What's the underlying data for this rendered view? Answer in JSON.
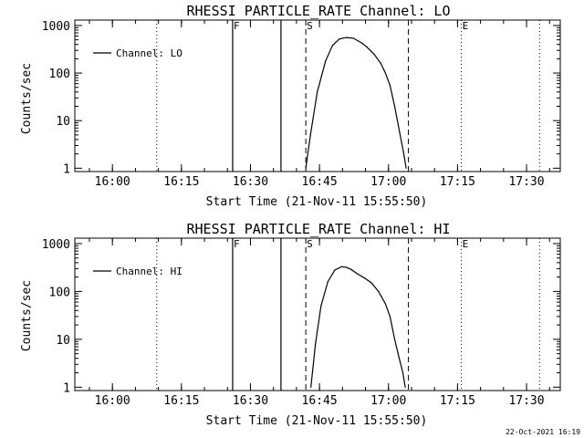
{
  "footer": {
    "timestamp": "22-Oct-2021 16:19"
  },
  "chart_data": [
    {
      "type": "line",
      "title": "RHESSI PARTICLE_RATE Channel: LO",
      "xlabel": "Start Time (21-Nov-11 15:55:50)",
      "ylabel": "Counts/sec",
      "x_tick_labels": [
        "16:00",
        "16:15",
        "16:30",
        "16:45",
        "17:00",
        "17:15",
        "17:30"
      ],
      "x_ticks_min": [
        4.17,
        19.17,
        34.17,
        49.17,
        64.17,
        79.17,
        94.17
      ],
      "xlim_min": [
        -4.0,
        101.5
      ],
      "y_scale": "log",
      "ylim": [
        0.85,
        1300
      ],
      "y_tick_labels": [
        "1",
        "10",
        "100",
        "1000"
      ],
      "y_ticks": [
        1,
        10,
        100,
        1000
      ],
      "legend": {
        "label": "Channel: LO",
        "placement": "top-left"
      },
      "markers": [
        {
          "label": "",
          "x_min": 13.8,
          "style": "dotted"
        },
        {
          "label": "F",
          "x_min": 30.3,
          "style": "solid"
        },
        {
          "label": "",
          "x_min": 40.8,
          "style": "solid"
        },
        {
          "label": "S",
          "x_min": 46.2,
          "style": "dashed"
        },
        {
          "label": "",
          "x_min": 68.5,
          "style": "dashed"
        },
        {
          "label": "E",
          "x_min": 80.0,
          "style": "dotted"
        },
        {
          "label": "",
          "x_min": 97.0,
          "style": "dotted"
        }
      ],
      "series": [
        {
          "name": "Channel: LO",
          "x_min": [
            46.2,
            47.2,
            48.7,
            50.5,
            52.0,
            53.5,
            55.0,
            56.5,
            57.5,
            58.5,
            59.5,
            61.0,
            62.5,
            63.5,
            64.5,
            65.5,
            66.7,
            67.5,
            68.0
          ],
          "y": [
            1,
            5,
            40,
            180,
            380,
            520,
            560,
            540,
            480,
            420,
            350,
            250,
            160,
            100,
            55,
            20,
            5,
            2,
            1
          ]
        }
      ]
    },
    {
      "type": "line",
      "title": "RHESSI PARTICLE_RATE Channel: HI",
      "xlabel": "Start Time (21-Nov-11 15:55:50)",
      "ylabel": "Counts/sec",
      "x_tick_labels": [
        "16:00",
        "16:15",
        "16:30",
        "16:45",
        "17:00",
        "17:15",
        "17:30"
      ],
      "x_ticks_min": [
        4.17,
        19.17,
        34.17,
        49.17,
        64.17,
        79.17,
        94.17
      ],
      "xlim_min": [
        -4.0,
        101.5
      ],
      "y_scale": "log",
      "ylim": [
        0.85,
        1300
      ],
      "y_tick_labels": [
        "1",
        "10",
        "100",
        "1000"
      ],
      "y_ticks": [
        1,
        10,
        100,
        1000
      ],
      "legend": {
        "label": "Channel: HI",
        "placement": "top-left"
      },
      "markers": [
        {
          "label": "",
          "x_min": 13.8,
          "style": "dotted"
        },
        {
          "label": "F",
          "x_min": 30.3,
          "style": "solid"
        },
        {
          "label": "",
          "x_min": 40.8,
          "style": "solid"
        },
        {
          "label": "S",
          "x_min": 46.2,
          "style": "dashed"
        },
        {
          "label": "",
          "x_min": 68.5,
          "style": "dashed"
        },
        {
          "label": "E",
          "x_min": 80.0,
          "style": "dotted"
        },
        {
          "label": "",
          "x_min": 97.0,
          "style": "dotted"
        }
      ],
      "series": [
        {
          "name": "Channel: HI",
          "x_min": [
            47.3,
            48.3,
            49.5,
            51.0,
            52.5,
            54.0,
            55.0,
            56.0,
            57.5,
            59.0,
            60.5,
            62.0,
            63.5,
            64.5,
            65.5,
            66.5,
            67.3,
            67.8
          ],
          "y": [
            1,
            8,
            50,
            160,
            280,
            330,
            320,
            290,
            230,
            190,
            150,
            100,
            55,
            30,
            10,
            4,
            2,
            1
          ]
        }
      ]
    }
  ]
}
